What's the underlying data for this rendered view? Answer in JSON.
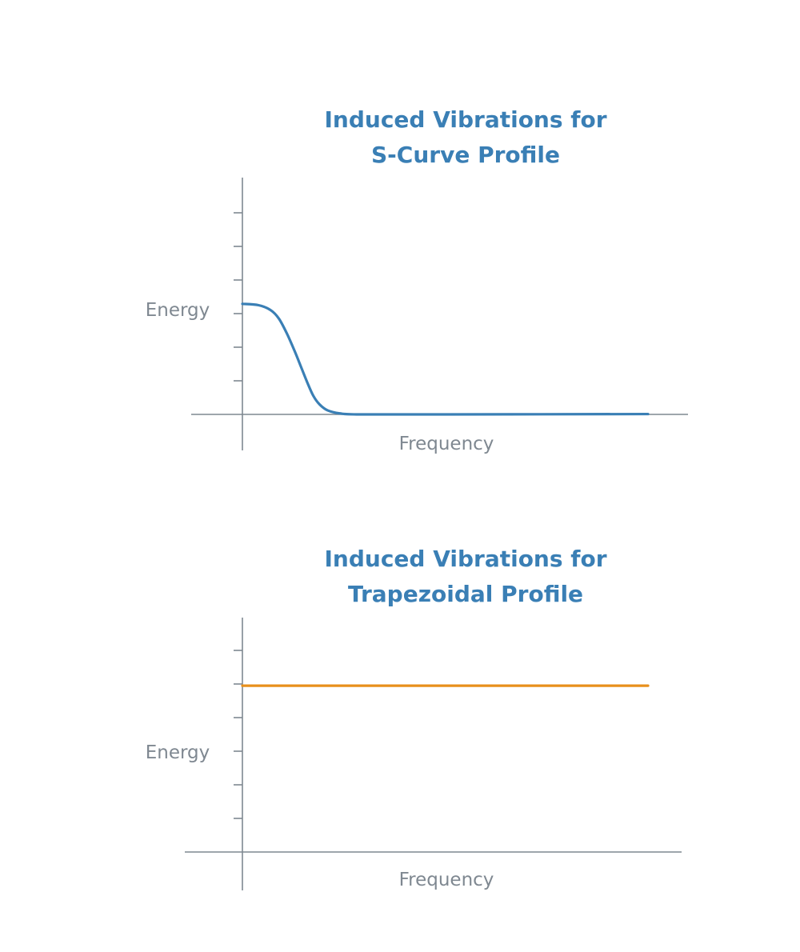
{
  "chart_data": [
    {
      "type": "line",
      "title_lines": [
        "Induced Vibrations for",
        "S-Curve Profile"
      ],
      "xlabel": "Frequency",
      "ylabel": "Energy",
      "ytick_count": 6,
      "ylim": [
        0,
        7
      ],
      "xlim": [
        0,
        100
      ],
      "grid": false,
      "series": [
        {
          "color": "#3a7fb5",
          "x": [
            0,
            4,
            7,
            9,
            11,
            13,
            14.5,
            16,
            17.5,
            19,
            21,
            24,
            29,
            50,
            100
          ],
          "y": [
            3.29,
            3.25,
            3.1,
            2.85,
            2.4,
            1.85,
            1.4,
            0.95,
            0.55,
            0.3,
            0.12,
            0.03,
            0,
            0,
            0.01
          ]
        }
      ],
      "title_color": "#3a7fb5",
      "axis_color": "#7f8891"
    },
    {
      "type": "line",
      "title_lines": [
        "Induced Vibrations for",
        "Trapezoidal Profile"
      ],
      "xlabel": "Frequency",
      "ylabel": "Energy",
      "ytick_count": 6,
      "ylim": [
        0,
        7
      ],
      "xlim": [
        0,
        100
      ],
      "grid": false,
      "series": [
        {
          "color": "#e8901c",
          "x": [
            0,
            100
          ],
          "y": [
            4.95,
            4.95
          ]
        }
      ],
      "title_color": "#3a7fb5",
      "axis_color": "#7f8891"
    }
  ]
}
